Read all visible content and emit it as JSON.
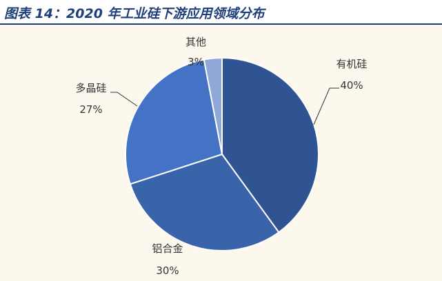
{
  "title": "图表 14：2020 年工业硅下游应用领域分布",
  "colors": {
    "title": "#1f3f7a",
    "background": "#fdf8ee"
  },
  "chart_data": {
    "type": "pie",
    "categories": [
      "有机硅",
      "铝合金",
      "多晶硅",
      "其他"
    ],
    "values": [
      40,
      30,
      27,
      3
    ],
    "value_labels": [
      "40%",
      "30%",
      "27%",
      "3%"
    ],
    "colors": [
      "#2f5491",
      "#3a64aa",
      "#4472c4",
      "#8fa8d8"
    ],
    "legend": "none",
    "data_labels": "outside with leader lines"
  }
}
